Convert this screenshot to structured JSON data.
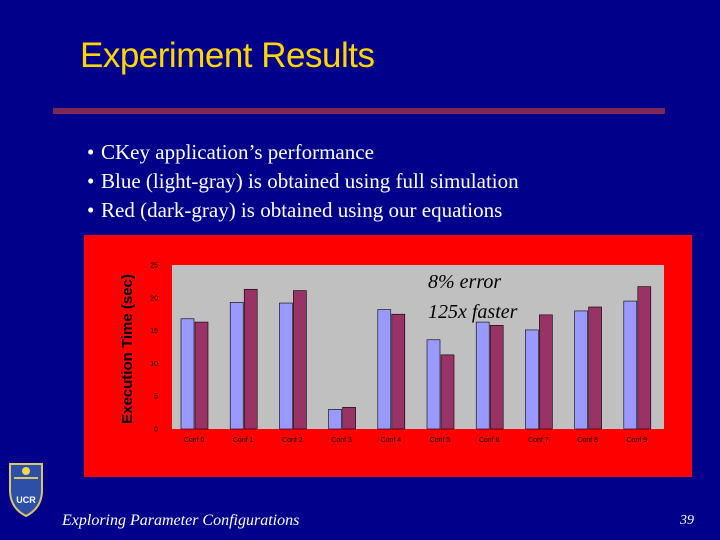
{
  "slide": {
    "title": "Experiment Results",
    "bullets": [
      "CKey application’s performance",
      "Blue (light-gray) is obtained using full simulation",
      "Red (dark-gray) is obtained using our equations"
    ],
    "annotation_lines": [
      "8% error",
      "125x faster"
    ],
    "footer": "Exploring Parameter Configurations",
    "page_number": "39",
    "logo_text": "UCR"
  },
  "colors": {
    "background": "#00008a",
    "title": "#ffd700",
    "panel": "#ff0000",
    "plot_area": "#c0c0c0",
    "series_simulation": "#9999ff",
    "series_equations": "#993366"
  },
  "chart_data": {
    "type": "bar",
    "title": "",
    "xlabel": "",
    "ylabel": "Execution Time (sec)",
    "categories": [
      "Conf 0",
      "Conf 1",
      "Conf 2",
      "Conf 3",
      "Conf 4",
      "Conf 5",
      "Conf 6",
      "Conf 7",
      "Conf 8",
      "Conf 9"
    ],
    "series": [
      {
        "values": [
          16.8,
          19.3,
          19.2,
          3.0,
          18.2,
          13.6,
          16.3,
          15.1,
          18.0,
          19.5
        ]
      },
      {
        "values": [
          16.3,
          21.3,
          21.1,
          3.3,
          17.5,
          11.3,
          15.8,
          17.4,
          18.6,
          21.7
        ]
      }
    ],
    "ylim": [
      0,
      25
    ],
    "yticks": [
      "0",
      "5",
      "10",
      "15",
      "20",
      "25"
    ],
    "grid": false,
    "legend": "none"
  }
}
